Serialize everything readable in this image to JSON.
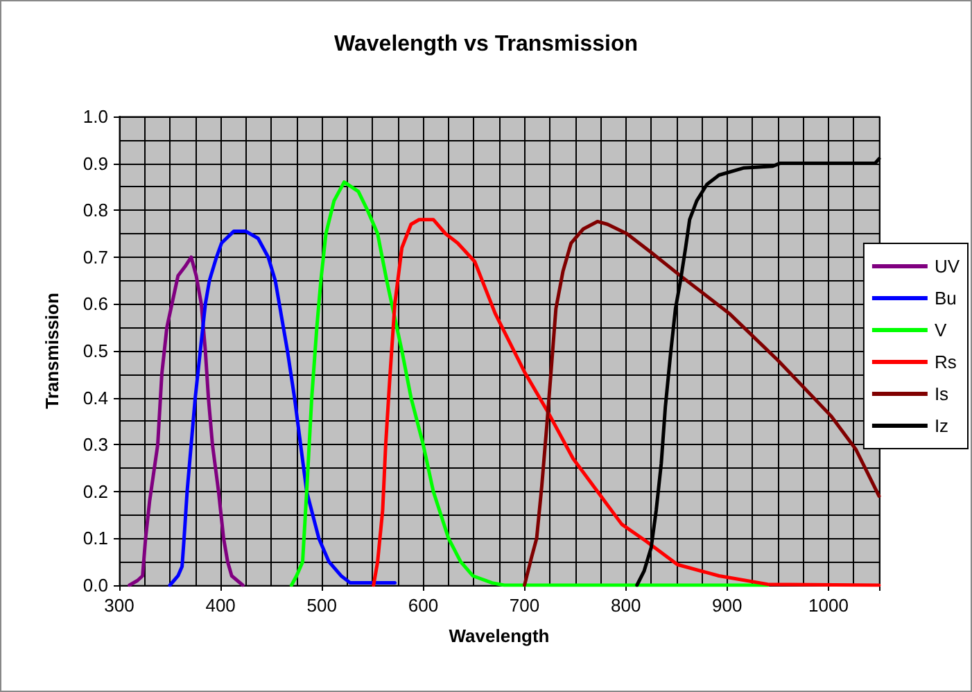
{
  "chart_data": {
    "type": "line",
    "title": "Wavelength vs Transmission",
    "xlabel": "Wavelength",
    "ylabel": "Transmission",
    "xlim": [
      300,
      1050
    ],
    "xticks": [
      300,
      400,
      500,
      600,
      700,
      800,
      900,
      1000
    ],
    "ylim": [
      0,
      1
    ],
    "yticks": [
      {
        "value": 0,
        "label": "0.0"
      },
      {
        "value": 0.1,
        "label": "0.1"
      },
      {
        "value": 0.2,
        "label": "0.2"
      },
      {
        "value": 0.3,
        "label": "0.3"
      },
      {
        "value": 0.4,
        "label": "0.4"
      },
      {
        "value": 0.5,
        "label": "0.5"
      },
      {
        "value": 0.6,
        "label": "0.6"
      },
      {
        "value": 0.7,
        "label": "0.7"
      },
      {
        "value": 0.8,
        "label": "0.8"
      },
      {
        "value": 0.9,
        "label": "0.9"
      },
      {
        "value": 1,
        "label": "1.0"
      }
    ],
    "grid": true,
    "legend": "right",
    "marker": "none",
    "line_style": "solid",
    "series": [
      {
        "name": "UV",
        "color": "#800080",
        "x": [
          310,
          318,
          323,
          326,
          330,
          338,
          342,
          347,
          352,
          358,
          365,
          371,
          376,
          381,
          385,
          388,
          392,
          398,
          403,
          407,
          411,
          422
        ],
        "values": [
          0,
          0.01,
          0.02,
          0.1,
          0.18,
          0.3,
          0.45,
          0.55,
          0.6,
          0.66,
          0.68,
          0.7,
          0.66,
          0.6,
          0.5,
          0.4,
          0.3,
          0.2,
          0.1,
          0.05,
          0.02,
          0
        ]
      },
      {
        "name": "Bu",
        "color": "#0000ff",
        "x": [
          350,
          358,
          362,
          364,
          367,
          371,
          375,
          380,
          385,
          389,
          396,
          401,
          413,
          425,
          437,
          447,
          454,
          458,
          466,
          473,
          479,
          485,
          497,
          507,
          519,
          528,
          572
        ],
        "values": [
          0,
          0.02,
          0.04,
          0.1,
          0.2,
          0.3,
          0.4,
          0.5,
          0.6,
          0.65,
          0.7,
          0.73,
          0.755,
          0.755,
          0.74,
          0.7,
          0.65,
          0.6,
          0.5,
          0.4,
          0.3,
          0.2,
          0.1,
          0.05,
          0.02,
          0.005,
          0.005
        ]
      },
      {
        "name": "V",
        "color": "#00ff00",
        "x": [
          470,
          475,
          481,
          485,
          490,
          495,
          499,
          504,
          512,
          522,
          536,
          545,
          555,
          564,
          579,
          588,
          600,
          610,
          625,
          637,
          649,
          668,
          680,
          940
        ],
        "values": [
          0,
          0.02,
          0.05,
          0.2,
          0.4,
          0.55,
          0.65,
          0.75,
          0.82,
          0.86,
          0.84,
          0.8,
          0.75,
          0.65,
          0.5,
          0.4,
          0.3,
          0.2,
          0.1,
          0.05,
          0.02,
          0.005,
          0,
          0
        ]
      },
      {
        "name": "Rs",
        "color": "#ff0000",
        "x": [
          551,
          555,
          560,
          563,
          567,
          572,
          579,
          588,
          596,
          610,
          622,
          634,
          651,
          671,
          700,
          724,
          748,
          772,
          796,
          820,
          851,
          892,
          940,
          1050
        ],
        "values": [
          0,
          0.05,
          0.16,
          0.3,
          0.44,
          0.6,
          0.72,
          0.77,
          0.78,
          0.78,
          0.75,
          0.73,
          0.69,
          0.58,
          0.455,
          0.366,
          0.27,
          0.2,
          0.13,
          0.094,
          0.044,
          0.02,
          0.002,
          0
        ]
      },
      {
        "name": "Is",
        "color": "#800000",
        "x": [
          700,
          707,
          712,
          717,
          722,
          726,
          731,
          738,
          746,
          758,
          772,
          782,
          801,
          825,
          854,
          902,
          950,
          1003,
          1027,
          1050
        ],
        "values": [
          0,
          0.06,
          0.1,
          0.21,
          0.34,
          0.45,
          0.59,
          0.67,
          0.73,
          0.76,
          0.776,
          0.77,
          0.75,
          0.71,
          0.66,
          0.58,
          0.48,
          0.36,
          0.29,
          0.19
        ]
      },
      {
        "name": "Iz",
        "color": "#000000",
        "x": [
          811,
          818,
          825,
          830,
          835,
          839,
          844,
          849,
          854,
          859,
          863,
          870,
          880,
          892,
          916,
          945,
          952,
          988,
          1046,
          1050
        ],
        "values": [
          0,
          0.03,
          0.08,
          0.16,
          0.26,
          0.38,
          0.49,
          0.59,
          0.65,
          0.72,
          0.78,
          0.82,
          0.855,
          0.875,
          0.89,
          0.894,
          0.9,
          0.9,
          0.9,
          0.91
        ]
      }
    ]
  }
}
